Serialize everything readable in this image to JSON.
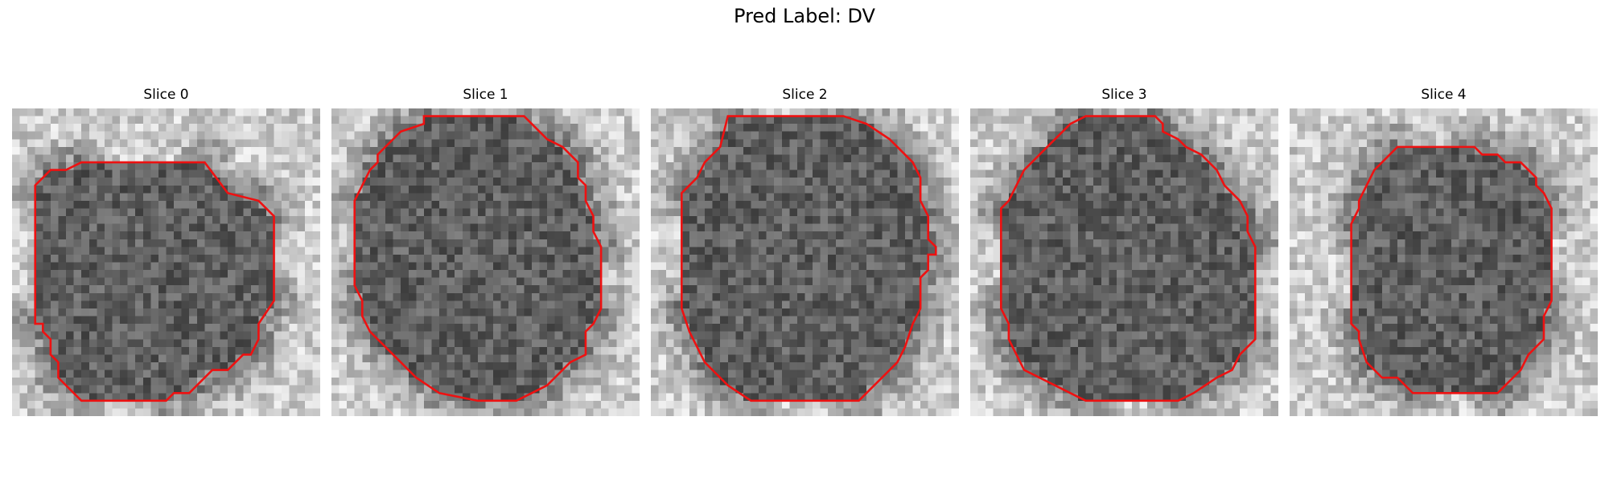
{
  "figure": {
    "title": "Pred Label: DV"
  },
  "panels": [
    {
      "title": "Slice 0",
      "seed": 11,
      "overlay_color": "#ee1111",
      "contour": [
        [
          9,
          7
        ],
        [
          25,
          7
        ],
        [
          28,
          11
        ],
        [
          32,
          12
        ],
        [
          34,
          14
        ],
        [
          34,
          25
        ],
        [
          32,
          28
        ],
        [
          32,
          30
        ],
        [
          31,
          32
        ],
        [
          30,
          32
        ],
        [
          28,
          34
        ],
        [
          26,
          34
        ],
        [
          24,
          36
        ],
        [
          23,
          37
        ],
        [
          21,
          37
        ],
        [
          20,
          38
        ],
        [
          9,
          38
        ],
        [
          6,
          35
        ],
        [
          6,
          33
        ],
        [
          5,
          32
        ],
        [
          5,
          30
        ],
        [
          4,
          29
        ],
        [
          4,
          28
        ],
        [
          3,
          28
        ],
        [
          3,
          10
        ],
        [
          5,
          8
        ],
        [
          7,
          8
        ]
      ]
    },
    {
      "title": "Slice 1",
      "seed": 23,
      "overlay_color": "#ee1111",
      "contour": [
        [
          12,
          1
        ],
        [
          25,
          1
        ],
        [
          28,
          4
        ],
        [
          30,
          5
        ],
        [
          32,
          7
        ],
        [
          32,
          9
        ],
        [
          33,
          10
        ],
        [
          33,
          12
        ],
        [
          34,
          14
        ],
        [
          34,
          16
        ],
        [
          35,
          18
        ],
        [
          35,
          26
        ],
        [
          34,
          28
        ],
        [
          33,
          29
        ],
        [
          33,
          32
        ],
        [
          31,
          33
        ],
        [
          28,
          36
        ],
        [
          26,
          37
        ],
        [
          24,
          38
        ],
        [
          19,
          38
        ],
        [
          14,
          37
        ],
        [
          11,
          35
        ],
        [
          9,
          33
        ],
        [
          6,
          30
        ],
        [
          5,
          29
        ],
        [
          4,
          27
        ],
        [
          4,
          25
        ],
        [
          3,
          23
        ],
        [
          3,
          12
        ],
        [
          5,
          8
        ],
        [
          6,
          7
        ],
        [
          6,
          6
        ],
        [
          7,
          5
        ],
        [
          9,
          3
        ],
        [
          12,
          2
        ]
      ]
    },
    {
      "title": "Slice 2",
      "seed": 37,
      "overlay_color": "#ee1111",
      "contour": [
        [
          10,
          1
        ],
        [
          25,
          1
        ],
        [
          28,
          2
        ],
        [
          31,
          4
        ],
        [
          34,
          7
        ],
        [
          35,
          9
        ],
        [
          35,
          12
        ],
        [
          36,
          14
        ],
        [
          36,
          17
        ],
        [
          37,
          18
        ],
        [
          37,
          19
        ],
        [
          36,
          19
        ],
        [
          36,
          21
        ],
        [
          35,
          22
        ],
        [
          35,
          26
        ],
        [
          34,
          28
        ],
        [
          33,
          31
        ],
        [
          32,
          33
        ],
        [
          31,
          34
        ],
        [
          27,
          38
        ],
        [
          13,
          38
        ],
        [
          10,
          36
        ],
        [
          7,
          33
        ],
        [
          5,
          29
        ],
        [
          4,
          26
        ],
        [
          4,
          11
        ],
        [
          6,
          9
        ],
        [
          7,
          7
        ],
        [
          9,
          5
        ]
      ]
    },
    {
      "title": "Slice 3",
      "seed": 53,
      "overlay_color": "#ee1111",
      "contour": [
        [
          15,
          1
        ],
        [
          24,
          1
        ],
        [
          25,
          2
        ],
        [
          25,
          3
        ],
        [
          27,
          4
        ],
        [
          28,
          5
        ],
        [
          30,
          6
        ],
        [
          32,
          8
        ],
        [
          33,
          10
        ],
        [
          35,
          12
        ],
        [
          36,
          14
        ],
        [
          36,
          16
        ],
        [
          37,
          18
        ],
        [
          37,
          30
        ],
        [
          35,
          32
        ],
        [
          34,
          34
        ],
        [
          32,
          35
        ],
        [
          29,
          37
        ],
        [
          27,
          38
        ],
        [
          15,
          38
        ],
        [
          13,
          37
        ],
        [
          11,
          36
        ],
        [
          7,
          34
        ],
        [
          6,
          32
        ],
        [
          5,
          30
        ],
        [
          5,
          28
        ],
        [
          4,
          26
        ],
        [
          4,
          13
        ],
        [
          5,
          12
        ],
        [
          6,
          10
        ],
        [
          7,
          8
        ],
        [
          8,
          7
        ],
        [
          9,
          6
        ],
        [
          11,
          4
        ],
        [
          13,
          2
        ]
      ]
    },
    {
      "title": "Slice 4",
      "seed": 71,
      "overlay_color": "#ee1111",
      "contour": [
        [
          14,
          5
        ],
        [
          24,
          5
        ],
        [
          25,
          6
        ],
        [
          27,
          6
        ],
        [
          28,
          7
        ],
        [
          30,
          7
        ],
        [
          31,
          8
        ],
        [
          32,
          9
        ],
        [
          32,
          10
        ],
        [
          33,
          11
        ],
        [
          34,
          13
        ],
        [
          34,
          25
        ],
        [
          33,
          27
        ],
        [
          33,
          30
        ],
        [
          32,
          31
        ],
        [
          31,
          32
        ],
        [
          30,
          34
        ],
        [
          29,
          35
        ],
        [
          28,
          36
        ],
        [
          27,
          37
        ],
        [
          16,
          37
        ],
        [
          14,
          35
        ],
        [
          12,
          35
        ],
        [
          10,
          33
        ],
        [
          9,
          30
        ],
        [
          9,
          29
        ],
        [
          8,
          28
        ],
        [
          8,
          15
        ],
        [
          9,
          13
        ],
        [
          9,
          12
        ],
        [
          10,
          10
        ],
        [
          11,
          8
        ],
        [
          12,
          7
        ],
        [
          13,
          6
        ]
      ]
    }
  ]
}
